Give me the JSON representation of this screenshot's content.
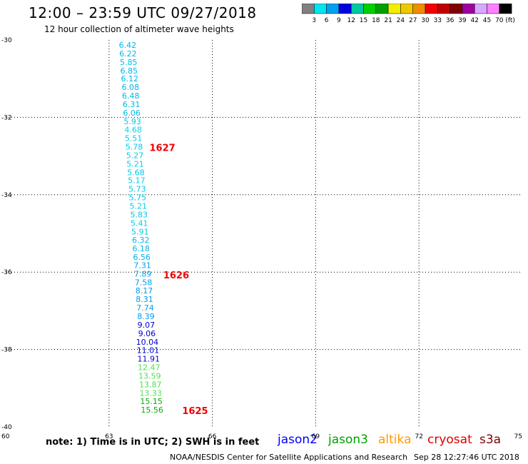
{
  "header": {
    "title": "12:00 – 23:59 UTC 09/27/2018",
    "subtitle": "12 hour collection of altimeter wave heights"
  },
  "colorbar": {
    "swatches": [
      "#808080",
      "#00e5ee",
      "#00a0f0",
      "#0000e0",
      "#00c8a0",
      "#00d000",
      "#00a000",
      "#f0f000",
      "#f0c800",
      "#f08c00",
      "#f00000",
      "#c00000",
      "#800000",
      "#a000a0",
      "#d8a8ff",
      "#ff80ff",
      "#000000"
    ],
    "labels": [
      "3",
      "6",
      "9",
      "12",
      "15",
      "18",
      "21",
      "24",
      "27",
      "30",
      "33",
      "36",
      "39",
      "42",
      "45",
      "70"
    ],
    "unit": "(ft)"
  },
  "chart_data": {
    "type": "scatter",
    "title": "12:00 – 23:59 UTC 09/27/2018",
    "subtitle": "12 hour collection of altimeter wave heights",
    "xlim": [
      60,
      75
    ],
    "ylim": [
      -40,
      -30
    ],
    "x_ticks": [
      60,
      63,
      66,
      69,
      72,
      75
    ],
    "y_ticks": [
      -30,
      -32,
      -34,
      -36,
      -38,
      -40
    ],
    "x_tick_labels": [
      "60",
      "63",
      "66",
      "69",
      "72",
      "75"
    ],
    "y_tick_labels": [
      "-30",
      "-32",
      "-34",
      "-36",
      "-38",
      "-40"
    ],
    "grid": true,
    "points": [
      {
        "lon": 63.54,
        "lat": -30.13,
        "value": "6.42",
        "color": "#00b8ea"
      },
      {
        "lon": 63.55,
        "lat": -30.35,
        "value": "6.22",
        "color": "#00b8ea"
      },
      {
        "lon": 63.57,
        "lat": -30.57,
        "value": "5.85",
        "color": "#00c0ea"
      },
      {
        "lon": 63.58,
        "lat": -30.79,
        "value": "6.85",
        "color": "#00b8ea"
      },
      {
        "lon": 63.6,
        "lat": -31.0,
        "value": "6.12",
        "color": "#00b8ea"
      },
      {
        "lon": 63.62,
        "lat": -31.22,
        "value": "6.08",
        "color": "#00b8ea"
      },
      {
        "lon": 63.63,
        "lat": -31.44,
        "value": "6.48",
        "color": "#00b8ea"
      },
      {
        "lon": 63.65,
        "lat": -31.66,
        "value": "6.31",
        "color": "#00b8ea"
      },
      {
        "lon": 63.66,
        "lat": -31.88,
        "value": "6.06",
        "color": "#00b8ea"
      },
      {
        "lon": 63.68,
        "lat": -32.1,
        "value": "5.93",
        "color": "#00c8ea"
      },
      {
        "lon": 63.7,
        "lat": -32.32,
        "value": "4.68",
        "color": "#00d8e8"
      },
      {
        "lon": 63.71,
        "lat": -32.54,
        "value": "5.51",
        "color": "#00d0e8"
      },
      {
        "lon": 63.73,
        "lat": -32.76,
        "value": "5.78",
        "color": "#00c8ea"
      },
      {
        "lon": 63.75,
        "lat": -32.98,
        "value": "5.27",
        "color": "#00d0e8"
      },
      {
        "lon": 63.76,
        "lat": -33.2,
        "value": "5.21",
        "color": "#00d0e8"
      },
      {
        "lon": 63.78,
        "lat": -33.42,
        "value": "5.68",
        "color": "#00c8ea"
      },
      {
        "lon": 63.8,
        "lat": -33.63,
        "value": "5.17",
        "color": "#00d0e8"
      },
      {
        "lon": 63.82,
        "lat": -33.85,
        "value": "5.73",
        "color": "#00c8ea"
      },
      {
        "lon": 63.83,
        "lat": -34.07,
        "value": "5.75",
        "color": "#00c8ea"
      },
      {
        "lon": 63.85,
        "lat": -34.29,
        "value": "5.21",
        "color": "#00d0e8"
      },
      {
        "lon": 63.87,
        "lat": -34.51,
        "value": "5.83",
        "color": "#00c8ea"
      },
      {
        "lon": 63.88,
        "lat": -34.73,
        "value": "5.41",
        "color": "#00d0e8"
      },
      {
        "lon": 63.9,
        "lat": -34.95,
        "value": "5.91",
        "color": "#00c8ea"
      },
      {
        "lon": 63.92,
        "lat": -35.17,
        "value": "6.32",
        "color": "#00b8ea"
      },
      {
        "lon": 63.93,
        "lat": -35.39,
        "value": "6.18",
        "color": "#00b8ea"
      },
      {
        "lon": 63.95,
        "lat": -35.61,
        "value": "6.56",
        "color": "#00b0ec"
      },
      {
        "lon": 63.97,
        "lat": -35.82,
        "value": "7.31",
        "color": "#00a0f0"
      },
      {
        "lon": 63.98,
        "lat": -36.04,
        "value": "7.89",
        "color": "#00a0f0"
      },
      {
        "lon": 64.0,
        "lat": -36.26,
        "value": "7.58",
        "color": "#00a0f0"
      },
      {
        "lon": 64.02,
        "lat": -36.48,
        "value": "8.17",
        "color": "#0098f0"
      },
      {
        "lon": 64.03,
        "lat": -36.7,
        "value": "8.31",
        "color": "#0098f0"
      },
      {
        "lon": 64.05,
        "lat": -36.92,
        "value": "7.74",
        "color": "#00a0f0"
      },
      {
        "lon": 64.07,
        "lat": -37.14,
        "value": "8.39",
        "color": "#0098f0"
      },
      {
        "lon": 64.08,
        "lat": -37.36,
        "value": "9.07",
        "color": "#0000d0"
      },
      {
        "lon": 64.1,
        "lat": -37.58,
        "value": "9.06",
        "color": "#0000d0"
      },
      {
        "lon": 64.11,
        "lat": -37.8,
        "value": "10.04",
        "color": "#0000d0"
      },
      {
        "lon": 64.13,
        "lat": -38.02,
        "value": "11.01",
        "color": "#0000d0"
      },
      {
        "lon": 64.15,
        "lat": -38.24,
        "value": "11.91",
        "color": "#0000d0"
      },
      {
        "lon": 64.16,
        "lat": -38.46,
        "value": "12.47",
        "color": "#50e050"
      },
      {
        "lon": 64.18,
        "lat": -38.68,
        "value": "13.59",
        "color": "#50e050"
      },
      {
        "lon": 64.2,
        "lat": -38.9,
        "value": "13.87",
        "color": "#50e050"
      },
      {
        "lon": 64.21,
        "lat": -39.12,
        "value": "13.33",
        "color": "#50e050"
      },
      {
        "lon": 64.23,
        "lat": -39.34,
        "value": "15.15",
        "color": "#00b000"
      },
      {
        "lon": 64.25,
        "lat": -39.56,
        "value": "15.56",
        "color": "#00b000"
      }
    ],
    "pass_labels": [
      {
        "lon": 64.55,
        "lat": -32.78,
        "text": "1627",
        "color": "#f00000"
      },
      {
        "lon": 64.95,
        "lat": -36.07,
        "text": "1626",
        "color": "#f00000"
      },
      {
        "lon": 65.5,
        "lat": -39.58,
        "text": "1625",
        "color": "#f00000"
      }
    ]
  },
  "footer": {
    "note": "note: 1) Time is in UTC; 2) SWH is in feet",
    "credit": "NOAA/NESDIS Center for Satellite Applications and Research",
    "timestamp": "Sep 28 12:27:46 UTC 2018",
    "satellites": [
      {
        "name": "jason2",
        "color": "#0000ff"
      },
      {
        "name": "jason3",
        "color": "#00a000"
      },
      {
        "name": "altika",
        "color": "#ff9900"
      },
      {
        "name": "cryosat",
        "color": "#e00000"
      },
      {
        "name": "s3a",
        "color": "#800000"
      }
    ]
  }
}
